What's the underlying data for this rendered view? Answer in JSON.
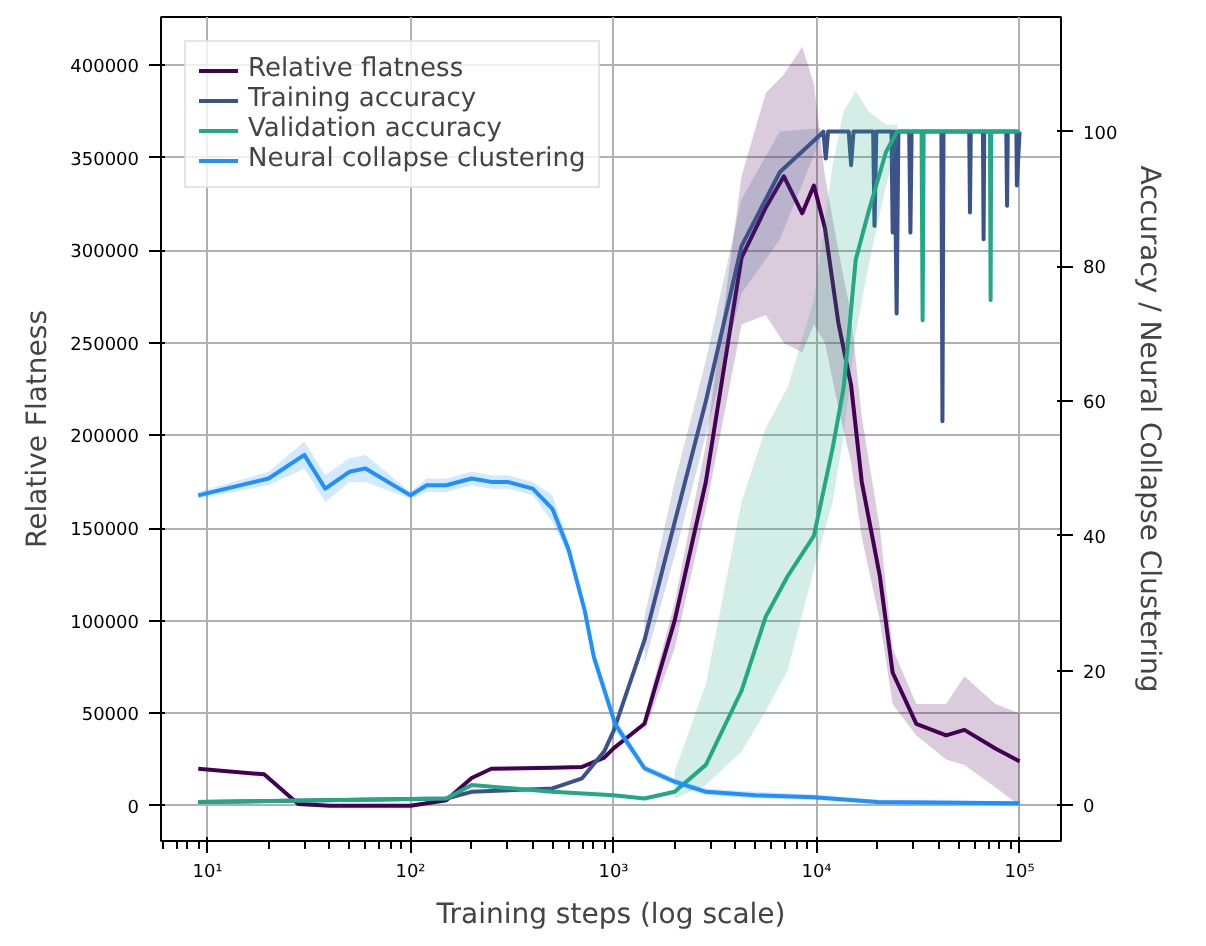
{
  "chart_data": {
    "type": "line",
    "xlabel": "Training steps (log scale)",
    "ylabel": "Relative Flatness",
    "y2label": "Accuracy / Neural Collapse Clustering",
    "log": "x",
    "grid": true,
    "legend": "top left",
    "marker": "none",
    "line_style": "solid",
    "xlim": [
      5.9,
      160000
    ],
    "xticks": [
      {
        "value": 10,
        "label": "10¹"
      },
      {
        "value": 100,
        "label": "10²"
      },
      {
        "value": 1000,
        "label": "10³"
      },
      {
        "value": 10000,
        "label": "10⁴"
      },
      {
        "value": 100000,
        "label": "10⁵"
      }
    ],
    "ylim": [
      -19000,
      426000
    ],
    "yticks": [
      0,
      50000,
      100000,
      150000,
      200000,
      250000,
      300000,
      350000,
      400000
    ],
    "y2lim": [
      -5.3,
      117
    ],
    "y2ticks": [
      0,
      20,
      40,
      60,
      80,
      100
    ],
    "series": [
      {
        "name": "Relative flatness",
        "color": "#440154",
        "x": [
          9,
          19,
          28,
          40,
          100,
          150,
          200,
          250,
          500,
          700,
          900,
          1000,
          1420,
          2000,
          2850,
          4270,
          5620,
          6900,
          8500,
          9700,
          11000,
          12800,
          14800,
          16700,
          20500,
          23700,
          31000,
          43500,
          53500,
          76000,
          100000
        ],
        "values": [
          20000,
          17000,
          1000,
          0,
          0,
          3000,
          15000,
          20000,
          20500,
          21000,
          26000,
          31000,
          44300,
          100000,
          175000,
          296000,
          323000,
          340000,
          320000,
          335000,
          312000,
          261000,
          227000,
          175000,
          124000,
          72000,
          44300,
          38000,
          41000,
          31000,
          24000
        ],
        "lower": [
          null,
          null,
          null,
          null,
          null,
          null,
          null,
          null,
          null,
          null,
          null,
          null,
          40000,
          85000,
          160000,
          260000,
          265000,
          250000,
          245000,
          260000,
          250000,
          215000,
          185000,
          145000,
          100000,
          55000,
          38000,
          25000,
          22000,
          10000,
          0
        ],
        "upper": [
          null,
          null,
          null,
          null,
          null,
          null,
          null,
          null,
          null,
          null,
          null,
          null,
          48000,
          110000,
          195000,
          340000,
          385000,
          395000,
          410000,
          390000,
          340000,
          300000,
          265000,
          210000,
          150000,
          85000,
          55000,
          55000,
          70000,
          55000,
          50000
        ]
      },
      {
        "name": "Training accuracy",
        "color": "#3b528b",
        "axis": "y2",
        "x": [
          9,
          150,
          200,
          500,
          700,
          900,
          1000,
          1420,
          2000,
          2850,
          4270,
          6600,
          10500,
          10800,
          11100,
          11400,
          14400,
          14800,
          15200,
          19000,
          19300,
          19700,
          23400,
          23700,
          24200,
          24800,
          25300,
          28600,
          29000,
          29400,
          41200,
          41700,
          42200,
          56500,
          57000,
          57500,
          66000,
          66500,
          67000,
          86000,
          86800,
          87500,
          96500,
          97000,
          100000
        ],
        "values": [
          0.5,
          1,
          2,
          2.5,
          4,
          8,
          11,
          24.5,
          42,
          60,
          83,
          94,
          99.6,
          100,
          96,
          100,
          100,
          95,
          100,
          100,
          86,
          100,
          100,
          85,
          100,
          73,
          100,
          100,
          85,
          100,
          100,
          57,
          100,
          100,
          88,
          100,
          100,
          84,
          100,
          100,
          89,
          100,
          100,
          92,
          100
        ],
        "lower": [
          null,
          null,
          null,
          null,
          null,
          null,
          null,
          21,
          37,
          55,
          76,
          84,
          99,
          null,
          null,
          null,
          null,
          null,
          null,
          null,
          null,
          null,
          null,
          null,
          null,
          null,
          null,
          null,
          null,
          null,
          null,
          null,
          null,
          null,
          null,
          null,
          null,
          null,
          null,
          null,
          null,
          null,
          null,
          null,
          null
        ],
        "upper": [
          null,
          null,
          null,
          null,
          null,
          null,
          null,
          28,
          48,
          66,
          90,
          100,
          100.5,
          null,
          null,
          null,
          null,
          null,
          null,
          null,
          null,
          null,
          null,
          null,
          null,
          null,
          null,
          null,
          null,
          null,
          null,
          null,
          null,
          null,
          null,
          null,
          null,
          null,
          null,
          null,
          null,
          null,
          null,
          null,
          null
        ]
      },
      {
        "name": "Validation accuracy",
        "color": "#22a884",
        "axis": "y2",
        "x": [
          9,
          150,
          200,
          500,
          1000,
          1420,
          2000,
          2850,
          4270,
          5620,
          7200,
          9700,
          12000,
          13600,
          15600,
          18000,
          22000,
          25000,
          32900,
          33300,
          33700,
          71500,
          72000,
          72500,
          100000
        ],
        "values": [
          0.5,
          1,
          3,
          2,
          1.5,
          1,
          2,
          6,
          17,
          28,
          34,
          40,
          53,
          62,
          81,
          88,
          97,
          100,
          100,
          72,
          100,
          100,
          75,
          100,
          100
        ],
        "lower": [
          null,
          null,
          null,
          null,
          null,
          null,
          1,
          3,
          8,
          14,
          20,
          35,
          45,
          55,
          70,
          80,
          92,
          98,
          null,
          null,
          null,
          null,
          null,
          null,
          null
        ],
        "upper": [
          null,
          null,
          null,
          null,
          null,
          null,
          5,
          18,
          45,
          56,
          62,
          75,
          95,
          103,
          106,
          103,
          101,
          101,
          null,
          null,
          null,
          null,
          null,
          null,
          null
        ]
      },
      {
        "name": "Neural collapse clustering",
        "color": "#1e90ff",
        "axis": "y2",
        "x": [
          9,
          20,
          30,
          38,
          50,
          60,
          100,
          120,
          150,
          200,
          250,
          300,
          400,
          500,
          600,
          720,
          800,
          1020,
          1420,
          2000,
          2850,
          5000,
          9700,
          20000,
          100000
        ],
        "values": [
          46,
          48.5,
          52,
          47,
          49.5,
          50,
          46,
          47.5,
          47.5,
          48.5,
          48,
          48,
          47,
          44,
          38,
          29,
          22,
          12,
          5.5,
          3.5,
          2,
          1.5,
          1.2,
          0.5,
          0.3
        ],
        "lower": [
          45.5,
          47.5,
          50,
          45,
          48,
          48,
          45.5,
          46.5,
          46.5,
          47.5,
          47,
          47,
          46,
          42,
          37,
          28,
          21,
          11,
          5,
          3,
          1.5,
          1,
          0.8,
          0.2,
          0
        ],
        "upper": [
          46.5,
          49.5,
          54,
          49,
          51.5,
          52,
          46.5,
          48.5,
          48.5,
          49.5,
          49,
          49,
          48,
          46,
          39,
          30,
          23,
          13,
          6,
          4,
          2.5,
          2,
          1.6,
          0.8,
          0.6
        ]
      }
    ]
  }
}
